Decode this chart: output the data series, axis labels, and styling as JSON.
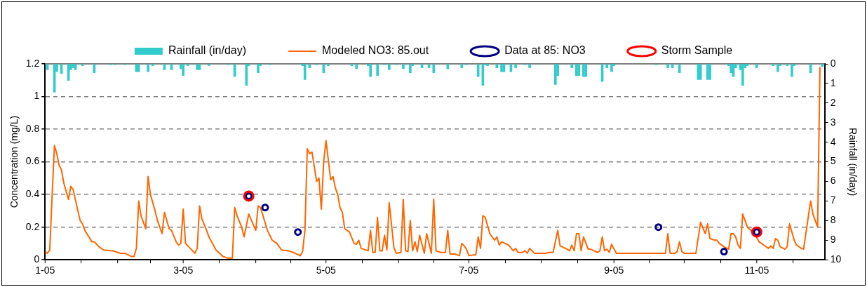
{
  "chart_data": {
    "type": "line",
    "ylabel": "Concentration (mg/L)",
    "y2label": "Rainfall (in/day)",
    "legend": "top",
    "grid": "y",
    "xlim": [
      "2005-01-01",
      "2005-11-30"
    ],
    "xticks": [
      {
        "value": "2005-01-01",
        "label": "1-05"
      },
      {
        "value": "2005-02-01",
        "label": null
      },
      {
        "value": "2005-03-01",
        "label": "3-05"
      },
      {
        "value": "2005-04-01",
        "label": null
      },
      {
        "value": "2005-05-01",
        "label": "5-05"
      },
      {
        "value": "2005-06-01",
        "label": null
      },
      {
        "value": "2005-07-01",
        "label": "7-05"
      },
      {
        "value": "2005-08-01",
        "label": null
      },
      {
        "value": "2005-09-01",
        "label": "9-05"
      },
      {
        "value": "2005-10-01",
        "label": null
      },
      {
        "value": "2005-11-01",
        "label": "11-05"
      }
    ],
    "ylim": [
      0,
      1.2
    ],
    "yticks": [
      0,
      0.2,
      0.4,
      0.6,
      0.8,
      1,
      1.2
    ],
    "y2lim": [
      10,
      0
    ],
    "y2ticks": [
      0,
      1,
      2,
      3,
      4,
      5,
      6,
      7,
      8,
      9,
      10
    ],
    "series": [
      {
        "name": "Rainfall (in/day)",
        "type": "bar",
        "axis": "y2",
        "color": "#33cccc",
        "x": [
          "2005-01-02",
          "2005-01-05",
          "2005-01-06",
          "2005-01-08",
          "2005-01-11",
          "2005-01-12",
          "2005-01-13",
          "2005-01-14",
          "2005-01-17",
          "2005-01-22",
          "2005-01-29",
          "2005-01-31",
          "2005-02-04",
          "2005-02-09",
          "2005-02-10",
          "2005-02-14",
          "2005-02-16",
          "2005-02-21",
          "2005-02-24",
          "2005-02-28",
          "2005-03-01",
          "2005-03-03",
          "2005-03-07",
          "2005-03-08",
          "2005-03-12",
          "2005-03-20",
          "2005-03-23",
          "2005-03-28",
          "2005-03-29",
          "2005-04-02",
          "2005-04-03",
          "2005-04-07",
          "2005-04-21",
          "2005-04-22",
          "2005-04-24",
          "2005-04-27",
          "2005-04-30",
          "2005-05-02",
          "2005-05-12",
          "2005-05-14",
          "2005-05-19",
          "2005-05-20",
          "2005-05-23",
          "2005-05-26",
          "2005-05-28",
          "2005-05-31",
          "2005-06-03",
          "2005-06-06",
          "2005-06-07",
          "2005-06-11",
          "2005-06-14",
          "2005-06-16",
          "2005-06-22",
          "2005-06-28",
          "2005-06-30",
          "2005-07-05",
          "2005-07-07",
          "2005-07-08",
          "2005-07-09",
          "2005-07-13",
          "2005-07-15",
          "2005-07-16",
          "2005-07-19",
          "2005-07-21",
          "2005-07-25",
          "2005-07-27",
          "2005-08-07",
          "2005-08-08",
          "2005-08-14",
          "2005-08-16",
          "2005-08-17",
          "2005-08-19",
          "2005-08-20",
          "2005-08-27",
          "2005-08-29",
          "2005-08-31",
          "2005-09-01",
          "2005-09-19",
          "2005-09-24",
          "2005-09-26",
          "2005-09-29",
          "2005-10-07",
          "2005-10-08",
          "2005-10-11",
          "2005-10-12",
          "2005-10-20",
          "2005-10-21",
          "2005-10-22",
          "2005-10-23",
          "2005-10-25",
          "2005-10-26",
          "2005-10-27",
          "2005-10-28",
          "2005-11-01",
          "2005-11-08",
          "2005-11-10",
          "2005-11-11",
          "2005-11-14",
          "2005-11-16",
          "2005-11-17",
          "2005-11-24",
          "2005-11-29"
        ],
        "values": [
          0.3,
          1.45,
          0.4,
          0.5,
          0.85,
          0.3,
          0.2,
          0.3,
          0.1,
          0.45,
          0.05,
          0.05,
          0.05,
          0.4,
          0.4,
          0.4,
          0.1,
          0.3,
          0.3,
          0.25,
          0.6,
          0.1,
          0.3,
          0.3,
          0.1,
          0.05,
          0.65,
          1.1,
          0.1,
          0.45,
          0.1,
          0.05,
          0.1,
          0.8,
          0.2,
          0.05,
          0.45,
          0.1,
          0.1,
          0.25,
          0.1,
          0.65,
          0.6,
          0.05,
          0.3,
          0.05,
          0.25,
          0.45,
          0.1,
          0.2,
          0.2,
          0.45,
          0.25,
          0.2,
          0.05,
          0.65,
          1.1,
          0.05,
          0.1,
          0.2,
          0.4,
          0.4,
          0.4,
          0.2,
          0.05,
          0.2,
          1.05,
          0.6,
          0.2,
          0.6,
          0.6,
          0.65,
          0.65,
          0.9,
          0.2,
          0.4,
          0.1,
          0.05,
          0.2,
          0.2,
          0.45,
          0.8,
          0.8,
          0.8,
          0.8,
          0.1,
          0.45,
          0.65,
          0.2,
          0.3,
          1.1,
          0.2,
          0.1,
          0.2,
          0.1,
          0.4,
          0.1,
          0.1,
          0.65,
          0.1,
          0.45,
          0.15
        ]
      },
      {
        "name": "Modeled NO3: 85.out",
        "color": "#ff6600",
        "x": [
          "2005-01-01",
          "2005-01-02",
          "2005-01-03",
          "2005-01-04",
          "2005-01-05",
          "2005-01-06",
          "2005-01-07",
          "2005-01-08",
          "2005-01-09",
          "2005-01-11",
          "2005-01-12",
          "2005-01-13",
          "2005-01-15",
          "2005-01-16",
          "2005-01-17",
          "2005-01-18",
          "2005-01-21",
          "2005-01-22",
          "2005-01-24",
          "2005-01-26",
          "2005-01-30",
          "2005-02-01",
          "2005-02-02",
          "2005-02-04",
          "2005-02-07",
          "2005-02-08",
          "2005-02-09",
          "2005-02-10",
          "2005-02-11",
          "2005-02-13",
          "2005-02-14",
          "2005-02-15",
          "2005-02-17",
          "2005-02-18",
          "2005-02-20",
          "2005-02-21",
          "2005-02-23",
          "2005-02-24",
          "2005-02-26",
          "2005-02-27",
          "2005-02-28",
          "2005-03-01",
          "2005-03-02",
          "2005-03-04",
          "2005-03-06",
          "2005-03-07",
          "2005-03-08",
          "2005-03-09",
          "2005-03-11",
          "2005-03-12",
          "2005-03-15",
          "2005-03-18",
          "2005-03-20",
          "2005-03-22",
          "2005-03-23",
          "2005-03-24",
          "2005-03-26",
          "2005-03-27",
          "2005-03-29",
          "2005-04-01",
          "2005-04-02",
          "2005-04-03",
          "2005-04-06",
          "2005-04-08",
          "2005-04-10",
          "2005-04-12",
          "2005-04-15",
          "2005-04-17",
          "2005-04-20",
          "2005-04-21",
          "2005-04-22",
          "2005-04-23",
          "2005-04-24",
          "2005-04-25",
          "2005-04-27",
          "2005-04-28",
          "2005-04-29",
          "2005-04-30",
          "2005-05-01",
          "2005-05-03",
          "2005-05-04",
          "2005-05-05",
          "2005-05-06",
          "2005-05-07",
          "2005-05-08",
          "2005-05-09",
          "2005-05-11",
          "2005-05-13",
          "2005-05-14",
          "2005-05-15",
          "2005-05-16",
          "2005-05-19",
          "2005-05-20",
          "2005-05-21",
          "2005-05-22",
          "2005-05-23",
          "2005-05-24",
          "2005-05-25",
          "2005-05-26",
          "2005-05-27",
          "2005-05-28",
          "2005-05-30",
          "2005-05-31",
          "2005-06-02",
          "2005-06-03",
          "2005-06-04",
          "2005-06-05",
          "2005-06-06",
          "2005-06-07",
          "2005-06-08",
          "2005-06-09",
          "2005-06-10",
          "2005-06-12",
          "2005-06-13",
          "2005-06-15",
          "2005-06-16",
          "2005-06-17",
          "2005-06-19",
          "2005-06-21",
          "2005-06-22",
          "2005-06-23",
          "2005-06-25",
          "2005-06-27",
          "2005-06-28",
          "2005-06-29",
          "2005-06-30",
          "2005-07-01",
          "2005-07-03",
          "2005-07-04",
          "2005-07-05",
          "2005-07-06",
          "2005-07-07",
          "2005-07-08",
          "2005-07-10",
          "2005-07-12",
          "2005-07-13",
          "2005-07-14",
          "2005-07-15",
          "2005-07-18",
          "2005-07-20",
          "2005-07-21",
          "2005-07-22",
          "2005-07-24",
          "2005-07-25",
          "2005-07-26",
          "2005-07-27",
          "2005-07-29",
          "2005-08-03",
          "2005-08-04",
          "2005-08-06",
          "2005-08-08",
          "2005-08-09",
          "2005-08-12",
          "2005-08-13",
          "2005-08-14",
          "2005-08-15",
          "2005-08-16",
          "2005-08-17",
          "2005-08-18",
          "2005-08-19",
          "2005-08-21",
          "2005-08-22",
          "2005-08-25",
          "2005-08-26",
          "2005-08-27",
          "2005-08-28",
          "2005-08-29",
          "2005-08-30",
          "2005-08-31",
          "2005-09-02",
          "2005-09-23",
          "2005-09-24",
          "2005-09-25",
          "2005-09-27",
          "2005-09-28",
          "2005-09-29",
          "2005-09-30",
          "2005-10-01",
          "2005-10-06",
          "2005-10-08",
          "2005-10-10",
          "2005-10-11",
          "2005-10-12",
          "2005-10-14",
          "2005-10-15",
          "2005-10-16",
          "2005-10-18",
          "2005-10-20",
          "2005-10-21",
          "2005-10-22",
          "2005-10-23",
          "2005-10-24",
          "2005-10-25",
          "2005-10-26",
          "2005-10-27",
          "2005-10-28",
          "2005-10-31",
          "2005-11-02",
          "2005-11-04",
          "2005-11-06",
          "2005-11-07",
          "2005-11-08",
          "2005-11-09",
          "2005-11-10",
          "2005-11-11",
          "2005-11-13",
          "2005-11-14",
          "2005-11-15",
          "2005-11-17",
          "2005-11-18",
          "2005-11-20",
          "2005-11-21",
          "2005-11-24",
          "2005-11-25",
          "2005-11-27",
          "2005-11-28"
        ],
        "values": [
          0.05,
          0.04,
          0.06,
          0.39,
          0.7,
          0.65,
          0.58,
          0.55,
          0.47,
          0.37,
          0.45,
          0.43,
          0.3,
          0.24,
          0.22,
          0.18,
          0.11,
          0.11,
          0.08,
          0.06,
          0.055,
          0.045,
          0.04,
          0.04,
          0.02,
          0.02,
          0.07,
          0.36,
          0.27,
          0.19,
          0.51,
          0.4,
          0.3,
          0.24,
          0.16,
          0.29,
          0.19,
          0.18,
          0.11,
          0.09,
          0.1,
          0.31,
          0.1,
          0.07,
          0.04,
          0.07,
          0.33,
          0.25,
          0.18,
          0.14,
          0.06,
          0.02,
          0.01,
          0.01,
          0.32,
          0.27,
          0.2,
          0.14,
          0.28,
          0.18,
          0.33,
          0.32,
          0.18,
          0.12,
          0.1,
          0.06,
          0.055,
          0.045,
          0.025,
          0.05,
          0.18,
          0.68,
          0.65,
          0.66,
          0.48,
          0.5,
          0.31,
          0.6,
          0.73,
          0.49,
          0.51,
          0.44,
          0.4,
          0.32,
          0.29,
          0.19,
          0.17,
          0.1,
          0.095,
          0.12,
          0.07,
          0.055,
          0.18,
          0.045,
          0.045,
          0.26,
          0.055,
          0.055,
          0.15,
          0.06,
          0.35,
          0.075,
          0.04,
          0.045,
          0.37,
          0.055,
          0.05,
          0.24,
          0.055,
          0.11,
          0.05,
          0.15,
          0.04,
          0.16,
          0.04,
          0.37,
          0.055,
          0.045,
          0.045,
          0.18,
          0.035,
          0.035,
          0.025,
          0.1,
          0.085,
          0.065,
          0.025,
          0.03,
          0.03,
          0.14,
          0.07,
          0.27,
          0.26,
          0.16,
          0.12,
          0.14,
          0.09,
          0.11,
          0.09,
          0.055,
          0.07,
          0.045,
          0.045,
          0.055,
          0.04,
          0.07,
          0.04,
          0.04,
          0.045,
          0.045,
          0.18,
          0.085,
          0.065,
          0.055,
          0.09,
          0.055,
          0.16,
          0.16,
          0.055,
          0.14,
          0.065,
          0.065,
          0.045,
          0.055,
          0.14,
          0.055,
          0.065,
          0.045,
          0.095,
          0.04,
          0.04,
          0.16,
          0.04,
          0.04,
          0.05,
          0.11,
          0.05,
          0.04,
          0.04,
          0.23,
          0.16,
          0.22,
          0.13,
          0.12,
          0.12,
          0.1,
          0.08,
          0.065,
          0.16,
          0.16,
          0.14,
          0.09,
          0.07,
          0.28,
          0.24,
          0.2,
          0.16,
          0.11,
          0.09,
          0.07,
          0.085,
          0.07,
          0.13,
          0.12,
          0.08,
          0.065,
          0.08,
          0.22,
          0.12,
          0.09,
          0.07,
          0.065,
          0.36,
          0.28,
          0.2,
          1.18
        ]
      },
      {
        "name": "Data at 85: NO3",
        "type": "scatter",
        "marker": "circle",
        "color": "#000080",
        "x": [
          "2005-03-29",
          "2005-04-05",
          "2005-04-19",
          "2005-09-20",
          "2005-10-18",
          "2005-11-01"
        ],
        "values": [
          0.39,
          0.32,
          0.17,
          0.2,
          0.05,
          0.17
        ]
      },
      {
        "name": "Storm Sample",
        "type": "scatter",
        "marker": "circle",
        "color": "#ff0000",
        "x": [
          "2005-03-29",
          "2005-11-01"
        ],
        "values": [
          0.39,
          0.17
        ]
      }
    ]
  }
}
